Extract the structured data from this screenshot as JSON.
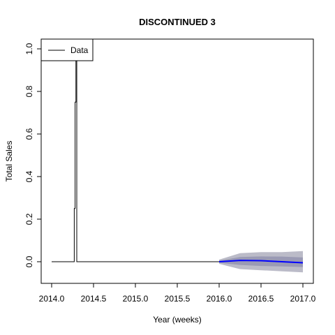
{
  "chart_data": {
    "type": "line",
    "title": "DISCONTINUED 3",
    "xlabel": "Year (weeks)",
    "ylabel": "Total Sales",
    "xlim": [
      2014.0,
      2017.0
    ],
    "ylim": [
      -0.1,
      1.0
    ],
    "x_ticks": [
      "2014.0",
      "2014.5",
      "2015.0",
      "2015.5",
      "2016.0",
      "2016.5",
      "2017.0"
    ],
    "y_ticks": [
      "0.0",
      "0.2",
      "0.4",
      "0.6",
      "0.8",
      "1.0"
    ],
    "legend": {
      "position": "top-left",
      "entries": [
        {
          "label": "Data",
          "color": "#000000"
        }
      ]
    },
    "series": [
      {
        "name": "Data",
        "color": "#000000",
        "x": [
          2014.0,
          2014.27,
          2014.27,
          2014.28,
          2014.28,
          2014.29,
          2014.29,
          2014.3,
          2014.3,
          2016.0
        ],
        "y": [
          0.0,
          0.0,
          0.25,
          0.25,
          0.75,
          0.75,
          1.0,
          1.0,
          0.0,
          0.0
        ]
      },
      {
        "name": "",
        "color": "#0000ff",
        "x": [
          2016.0,
          2016.25,
          2016.5,
          2016.75,
          2017.0
        ],
        "y": [
          0.0,
          0.006,
          0.005,
          0.0,
          -0.005
        ]
      }
    ],
    "bands": [
      {
        "color": "#bbbbc8",
        "x": [
          2016.0,
          2016.25,
          2016.5,
          2016.75,
          2017.0
        ],
        "lower": [
          -0.01,
          -0.035,
          -0.04,
          -0.045,
          -0.05
        ],
        "upper": [
          0.01,
          0.04,
          0.045,
          0.045,
          0.05
        ]
      },
      {
        "color": "#9a9ab4",
        "x": [
          2016.0,
          2016.25,
          2016.5,
          2016.75,
          2017.0
        ],
        "lower": [
          -0.005,
          -0.015,
          -0.02,
          -0.022,
          -0.025
        ],
        "upper": [
          0.005,
          0.022,
          0.025,
          0.024,
          0.02
        ]
      }
    ]
  }
}
